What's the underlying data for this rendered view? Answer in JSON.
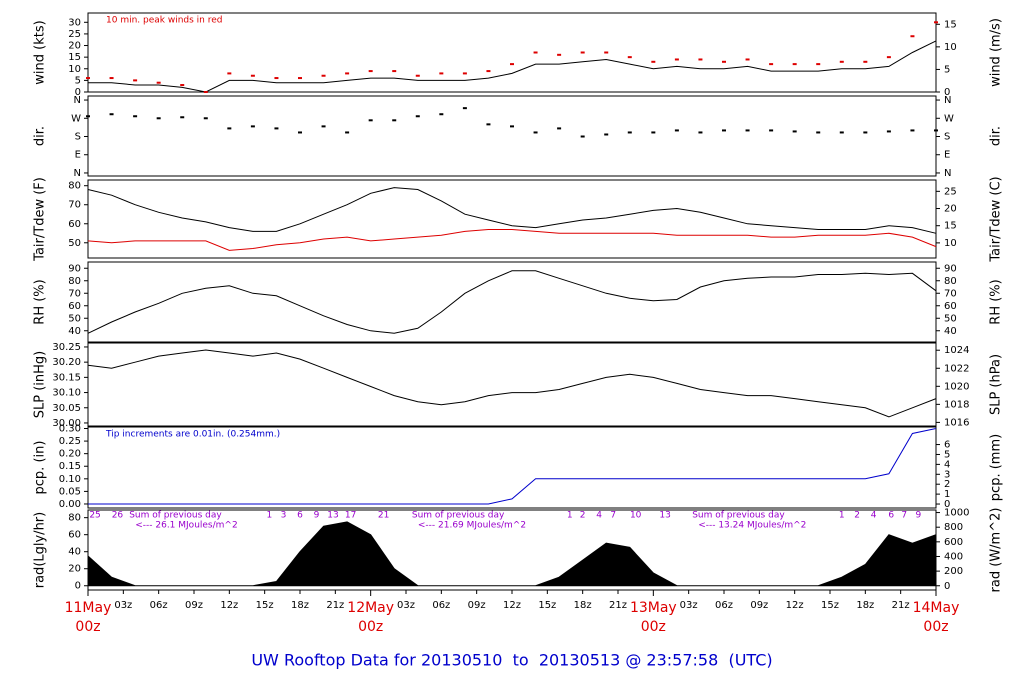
{
  "title": "UW Rooftop Data for 20130510  to  20130513 @ 23:57:58  (UTC)",
  "chart_data": [
    {
      "type": "line",
      "ylabel": "wind (kts)",
      "y2label": "wind (m/s)",
      "annotation": "10 min. peak winds in red",
      "annotation_color": "#dd0000",
      "xlim": [
        0,
        72
      ],
      "ylim": [
        0,
        34
      ],
      "yticks": [
        0,
        5,
        10,
        15,
        20,
        25,
        30
      ],
      "y2lim": [
        0,
        17.5
      ],
      "y2ticks": [
        0,
        5,
        10,
        15
      ],
      "x": [
        0,
        2,
        4,
        6,
        8,
        10,
        12,
        14,
        16,
        18,
        20,
        22,
        24,
        26,
        28,
        30,
        32,
        34,
        36,
        38,
        40,
        42,
        44,
        46,
        48,
        50,
        52,
        54,
        56,
        58,
        60,
        62,
        64,
        66,
        68,
        70,
        72
      ],
      "series": [
        {
          "type": "line",
          "color": "#000000",
          "values": [
            4,
            4,
            3,
            3,
            2,
            0,
            5,
            5,
            4,
            4,
            4,
            5,
            6,
            6,
            5,
            5,
            5,
            6,
            8,
            12,
            12,
            13,
            14,
            12,
            10,
            11,
            10,
            10,
            11,
            9,
            9,
            9,
            10,
            10,
            11,
            17,
            22
          ]
        },
        {
          "type": "scatter",
          "color": "#dd0000",
          "values": [
            6,
            6,
            5,
            4,
            3,
            0,
            8,
            7,
            6,
            6,
            7,
            8,
            9,
            9,
            7,
            8,
            8,
            9,
            12,
            17,
            16,
            17,
            17,
            15,
            13,
            14,
            14,
            13,
            14,
            12,
            12,
            12,
            13,
            13,
            15,
            24,
            30
          ]
        }
      ]
    },
    {
      "type": "scatter",
      "ylabel": "dir.",
      "y2label": "dir.",
      "xlim": [
        0,
        72
      ],
      "ylim": [
        -15,
        380
      ],
      "yticks": [
        {
          "value": 0,
          "label": "N"
        },
        {
          "value": 90,
          "label": "E"
        },
        {
          "value": 180,
          "label": "S"
        },
        {
          "value": 270,
          "label": "W"
        },
        {
          "value": 360,
          "label": "N"
        }
      ],
      "y2lim": [
        -15,
        380
      ],
      "y2ticks": [
        {
          "value": 0,
          "label": "N"
        },
        {
          "value": 90,
          "label": "E"
        },
        {
          "value": 180,
          "label": "S"
        },
        {
          "value": 270,
          "label": "W"
        },
        {
          "value": 360,
          "label": "N"
        }
      ],
      "x": [
        0,
        2,
        4,
        6,
        8,
        10,
        12,
        14,
        16,
        18,
        20,
        22,
        24,
        26,
        28,
        30,
        32,
        34,
        36,
        38,
        40,
        42,
        44,
        46,
        48,
        50,
        52,
        54,
        56,
        58,
        60,
        62,
        64,
        66,
        68,
        70,
        72
      ],
      "series": [
        {
          "type": "scatter",
          "color": "#000000",
          "values": [
            280,
            290,
            280,
            270,
            275,
            270,
            220,
            230,
            220,
            200,
            230,
            200,
            260,
            260,
            280,
            290,
            320,
            240,
            230,
            200,
            220,
            180,
            190,
            200,
            200,
            210,
            200,
            210,
            210,
            210,
            205,
            200,
            200,
            200,
            205,
            210,
            210
          ]
        }
      ]
    },
    {
      "type": "line",
      "ylabel": "Tair/Tdew (F)",
      "y2label": "Tair/Tdew (C)",
      "xlim": [
        0,
        72
      ],
      "ylim": [
        42,
        83
      ],
      "yticks": [
        50,
        60,
        70,
        80
      ],
      "y2lim": [
        5.6,
        28.3
      ],
      "y2ticks": [
        10,
        15,
        20,
        25
      ],
      "x": [
        0,
        2,
        4,
        6,
        8,
        10,
        12,
        14,
        16,
        18,
        20,
        22,
        24,
        26,
        28,
        30,
        32,
        34,
        36,
        38,
        40,
        42,
        44,
        46,
        48,
        50,
        52,
        54,
        56,
        58,
        60,
        62,
        64,
        66,
        68,
        70,
        72
      ],
      "series": [
        {
          "type": "line",
          "color": "#000000",
          "values": [
            78,
            75,
            70,
            66,
            63,
            61,
            58,
            56,
            56,
            60,
            65,
            70,
            76,
            79,
            78,
            72,
            65,
            62,
            59,
            58,
            60,
            62,
            63,
            65,
            67,
            68,
            66,
            63,
            60,
            59,
            58,
            57,
            57,
            57,
            59,
            58,
            55
          ]
        },
        {
          "type": "line",
          "color": "#dd0000",
          "values": [
            51,
            50,
            51,
            51,
            51,
            51,
            46,
            47,
            49,
            50,
            52,
            53,
            51,
            52,
            53,
            54,
            56,
            57,
            57,
            56,
            55,
            55,
            55,
            55,
            55,
            54,
            54,
            54,
            54,
            53,
            53,
            54,
            54,
            54,
            55,
            53,
            48
          ]
        }
      ]
    },
    {
      "type": "line",
      "ylabel": "RH (%)",
      "y2label": "RH (%)",
      "xlim": [
        0,
        72
      ],
      "ylim": [
        31,
        95
      ],
      "yticks": [
        40,
        50,
        60,
        70,
        80,
        90
      ],
      "y2lim": [
        31,
        95
      ],
      "y2ticks": [
        40,
        50,
        60,
        70,
        80,
        90
      ],
      "x": [
        0,
        2,
        4,
        6,
        8,
        10,
        12,
        14,
        16,
        18,
        20,
        22,
        24,
        26,
        28,
        30,
        32,
        34,
        36,
        38,
        40,
        42,
        44,
        46,
        48,
        50,
        52,
        54,
        56,
        58,
        60,
        62,
        64,
        66,
        68,
        70,
        72
      ],
      "series": [
        {
          "type": "line",
          "color": "#000000",
          "values": [
            38,
            47,
            55,
            62,
            70,
            74,
            76,
            70,
            68,
            60,
            52,
            45,
            40,
            38,
            42,
            55,
            70,
            80,
            88,
            88,
            82,
            76,
            70,
            66,
            64,
            65,
            75,
            80,
            82,
            83,
            83,
            85,
            85,
            86,
            85,
            86,
            72
          ]
        }
      ]
    },
    {
      "type": "line",
      "ylabel": "SLP (inHg)",
      "y2label": "SLP (hPa)",
      "xlim": [
        0,
        72
      ],
      "ylim": [
        29.99,
        30.263
      ],
      "yticks": [
        {
          "value": 30,
          "label": "30.00"
        },
        30.05,
        {
          "value": 30.1,
          "label": "30.10"
        },
        30.15,
        {
          "value": 30.2,
          "label": "30.20"
        },
        30.25
      ],
      "y2lim": [
        1015.6,
        1024.8
      ],
      "y2ticks": [
        1016,
        1018,
        1020,
        1022,
        1024
      ],
      "x": [
        0,
        2,
        4,
        6,
        8,
        10,
        12,
        14,
        16,
        18,
        20,
        22,
        24,
        26,
        28,
        30,
        32,
        34,
        36,
        38,
        40,
        42,
        44,
        46,
        48,
        50,
        52,
        54,
        56,
        58,
        60,
        62,
        64,
        66,
        68,
        70,
        72
      ],
      "series": [
        {
          "type": "line",
          "color": "#000000",
          "values": [
            30.19,
            30.18,
            30.2,
            30.22,
            30.23,
            30.24,
            30.23,
            30.22,
            30.23,
            30.21,
            30.18,
            30.15,
            30.12,
            30.09,
            30.07,
            30.06,
            30.07,
            30.09,
            30.1,
            30.1,
            30.11,
            30.13,
            30.15,
            30.16,
            30.15,
            30.13,
            30.11,
            30.1,
            30.09,
            30.09,
            30.08,
            30.07,
            30.06,
            30.05,
            30.02,
            30.05,
            30.08
          ]
        }
      ]
    },
    {
      "type": "line",
      "ylabel": "pcp. (in)",
      "y2label": "pcp. (mm)",
      "annotation": "Tip increments are 0.01in. (0.254mm.)",
      "annotation_color": "#0000cc",
      "xlim": [
        0,
        72
      ],
      "ylim": [
        -0.016,
        0.306
      ],
      "yticks": [
        {
          "value": 0,
          "label": "0.00"
        },
        0.05,
        {
          "value": 0.1,
          "label": "0.10"
        },
        0.15,
        {
          "value": 0.2,
          "label": "0.20"
        },
        0.25,
        {
          "value": 0.3,
          "label": "0.30"
        }
      ],
      "y2lim": [
        -0.4,
        7.77
      ],
      "y2ticks": [
        0,
        1,
        2,
        3,
        4,
        5,
        6
      ],
      "x": [
        0,
        2,
        4,
        6,
        8,
        10,
        12,
        14,
        16,
        18,
        20,
        22,
        24,
        26,
        28,
        30,
        32,
        34,
        36,
        38,
        40,
        42,
        44,
        46,
        48,
        50,
        52,
        54,
        56,
        58,
        60,
        62,
        64,
        66,
        68,
        70,
        72
      ],
      "series": [
        {
          "type": "line",
          "color": "#0000cc",
          "values": [
            0,
            0,
            0,
            0,
            0,
            0,
            0,
            0,
            0,
            0,
            0,
            0,
            0,
            0,
            0,
            0,
            0,
            0,
            0.02,
            0.1,
            0.1,
            0.1,
            0.1,
            0.1,
            0.1,
            0.1,
            0.1,
            0.1,
            0.1,
            0.1,
            0.1,
            0.1,
            0.1,
            0.1,
            0.12,
            0.28,
            0.3
          ]
        }
      ]
    },
    {
      "type": "area",
      "ylabel": "rad(Lgly/hr)",
      "y2label": "rad (W/m^2)",
      "xlim": [
        0,
        72
      ],
      "ylim": [
        -5,
        89
      ],
      "yticks": [
        0,
        20,
        40,
        60,
        80
      ],
      "y2lim": [
        -58,
        1035
      ],
      "y2ticks": [
        0,
        200,
        400,
        600,
        800,
        1000
      ],
      "x": [
        0,
        2,
        4,
        6,
        8,
        10,
        12,
        14,
        16,
        18,
        20,
        22,
        24,
        26,
        28,
        30,
        32,
        34,
        36,
        38,
        40,
        42,
        44,
        46,
        48,
        50,
        52,
        54,
        56,
        58,
        60,
        62,
        64,
        66,
        68,
        70,
        72
      ],
      "series": [
        {
          "type": "area",
          "color": "#000000",
          "values": [
            35,
            10,
            0,
            0,
            0,
            0,
            0,
            0,
            5,
            40,
            70,
            75,
            60,
            20,
            0,
            0,
            0,
            0,
            0,
            0,
            10,
            30,
            50,
            45,
            15,
            0,
            0,
            0,
            0,
            0,
            0,
            0,
            10,
            25,
            60,
            50,
            60
          ]
        }
      ],
      "hour_marks": [
        {
          "value": 0.6,
          "label": "25"
        },
        {
          "value": 2.5,
          "label": "26"
        },
        {
          "value": 15.4,
          "label": "1"
        },
        {
          "value": 16.6,
          "label": "3"
        },
        {
          "value": 18,
          "label": "6"
        },
        {
          "value": 19.4,
          "label": "9"
        },
        {
          "value": 20.8,
          "label": "13"
        },
        {
          "value": 22.3,
          "label": "17"
        },
        {
          "value": 25.1,
          "label": "21"
        },
        {
          "value": 40.9,
          "label": "1"
        },
        {
          "value": 42,
          "label": "2"
        },
        {
          "value": 43.4,
          "label": "4"
        },
        {
          "value": 44.6,
          "label": "7"
        },
        {
          "value": 46.5,
          "label": "10"
        },
        {
          "value": 49,
          "label": "13"
        },
        {
          "value": 64,
          "label": "1"
        },
        {
          "value": 65.3,
          "label": "2"
        },
        {
          "value": 66.7,
          "label": "4"
        },
        {
          "value": 68.2,
          "label": "6"
        },
        {
          "value": 69.3,
          "label": "7"
        },
        {
          "value": 70.5,
          "label": "9"
        }
      ],
      "annotations": [
        {
          "x": 3.5,
          "text": "Sum of previous day",
          "sub": "<--- 26.1 MJoules/m^2"
        },
        {
          "x": 27.5,
          "text": "Sum of previous day",
          "sub": "<--- 21.69 MJoules/m^2"
        },
        {
          "x": 51.3,
          "text": "Sum of previous day",
          "sub": "<--- 13.24 MJoules/m^2"
        }
      ],
      "xticks": [
        {
          "value": 3,
          "label": "03z"
        },
        {
          "value": 6,
          "label": "06z"
        },
        {
          "value": 9,
          "label": "09z"
        },
        {
          "value": 12,
          "label": "12z"
        },
        {
          "value": 15,
          "label": "15z"
        },
        {
          "value": 18,
          "label": "18z"
        },
        {
          "value": 21,
          "label": "21z"
        },
        {
          "value": 27,
          "label": "03z"
        },
        {
          "value": 30,
          "label": "06z"
        },
        {
          "value": 33,
          "label": "09z"
        },
        {
          "value": 36,
          "label": "12z"
        },
        {
          "value": 39,
          "label": "15z"
        },
        {
          "value": 42,
          "label": "18z"
        },
        {
          "value": 45,
          "label": "21z"
        },
        {
          "value": 51,
          "label": "03z"
        },
        {
          "value": 54,
          "label": "06z"
        },
        {
          "value": 57,
          "label": "09z"
        },
        {
          "value": 60,
          "label": "12z"
        },
        {
          "value": 63,
          "label": "15z"
        },
        {
          "value": 66,
          "label": "18z"
        },
        {
          "value": 69,
          "label": "21z"
        }
      ],
      "day_labels": [
        {
          "value": 0,
          "label": "11May",
          "sublabel": "00z"
        },
        {
          "value": 24,
          "label": "12May",
          "sublabel": "00z"
        },
        {
          "value": 48,
          "label": "13May",
          "sublabel": "00z"
        },
        {
          "value": 72,
          "label": "14May",
          "sublabel": "00z"
        }
      ]
    }
  ]
}
